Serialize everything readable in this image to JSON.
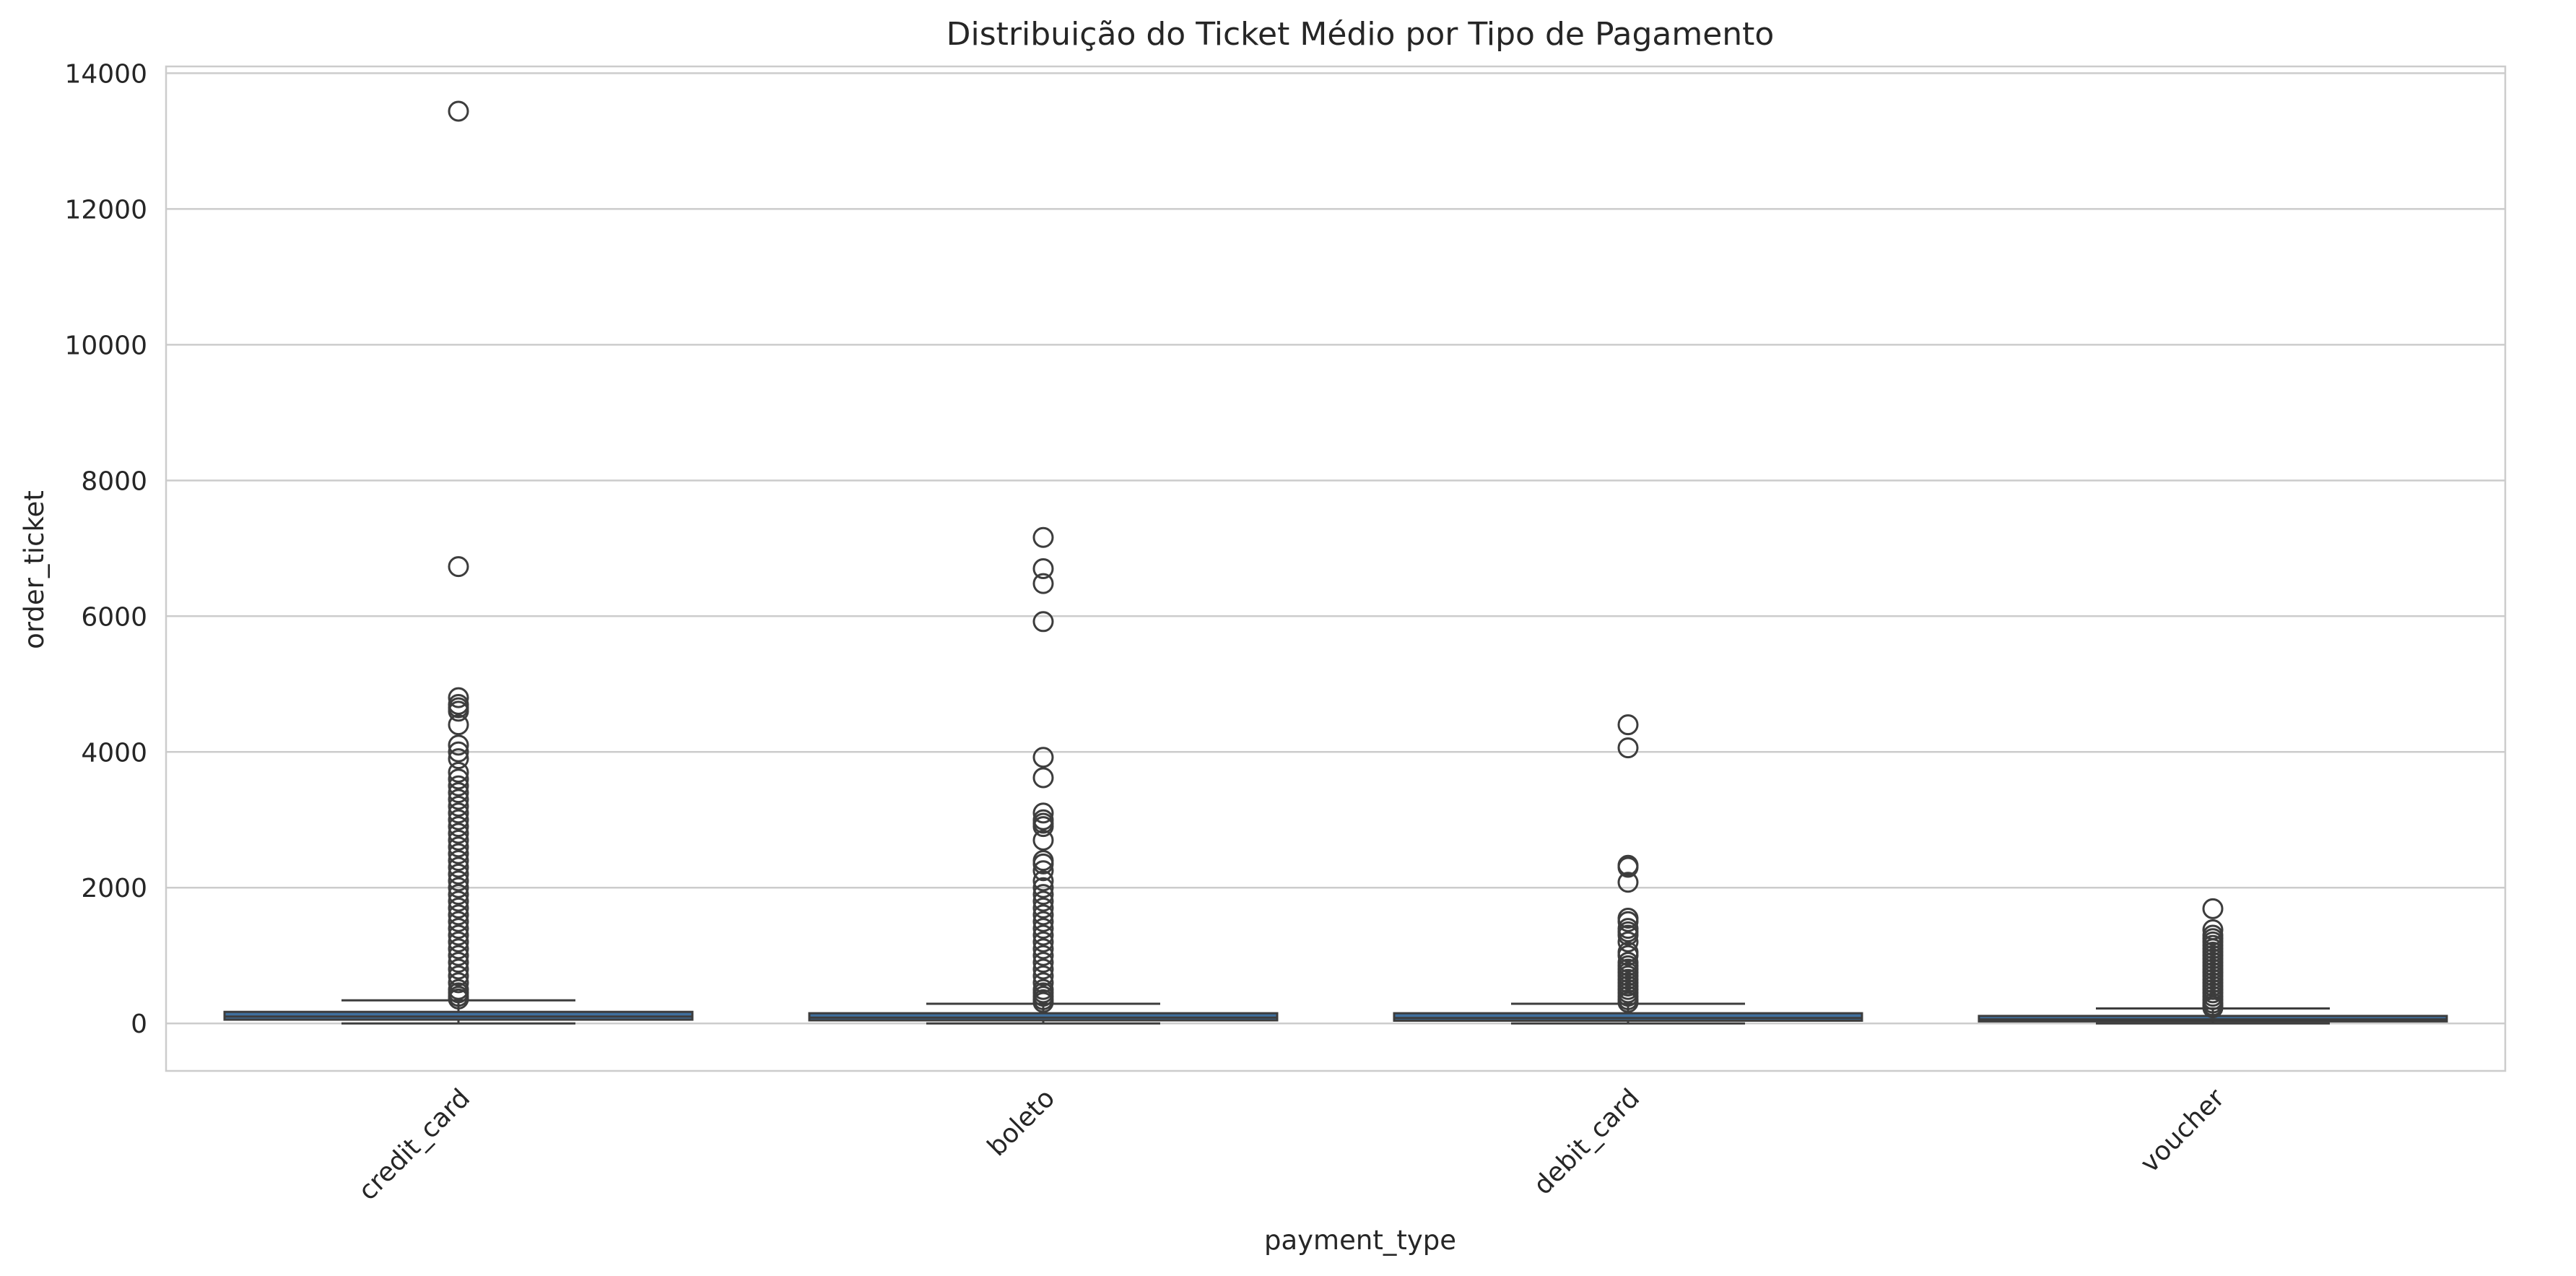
{
  "chart_data": {
    "type": "box",
    "title": "Distribuição do Ticket Médio por Tipo de Pagamento",
    "xlabel": "payment_type",
    "ylabel": "order_ticket",
    "ylim": [
      -700,
      14100
    ],
    "yticks": [
      0,
      2000,
      4000,
      6000,
      8000,
      10000,
      12000,
      14000
    ],
    "categories": [
      "credit_card",
      "boleto",
      "debit_card",
      "voucher"
    ],
    "grid": "y",
    "box_color": "#3f6f9e",
    "boxes": [
      {
        "category": "credit_card",
        "whisker_low": 0,
        "q1": 55,
        "median": 100,
        "q3": 170,
        "whisker_high": 340,
        "outliers": [
          13440,
          6730,
          4800,
          4700,
          4650,
          4600,
          4400,
          4100,
          4000,
          3900,
          3700,
          3600,
          3500,
          3400,
          3300,
          3200,
          3100,
          3000,
          2900,
          2800,
          2700,
          2600,
          2500,
          2400,
          2300,
          2200,
          2100,
          2000,
          1900,
          1800,
          1700,
          1600,
          1500,
          1400,
          1300,
          1200,
          1100,
          1000,
          900,
          800,
          700,
          600,
          500,
          450,
          400,
          360
        ]
      },
      {
        "category": "boleto",
        "whisker_low": 0,
        "q1": 45,
        "median": 85,
        "q3": 150,
        "whisker_high": 290,
        "outliers": [
          7160,
          6700,
          6480,
          5920,
          3920,
          3620,
          3100,
          3000,
          2950,
          2900,
          2700,
          2400,
          2350,
          2250,
          2100,
          2000,
          1900,
          1800,
          1700,
          1600,
          1500,
          1400,
          1300,
          1200,
          1100,
          1000,
          900,
          800,
          700,
          600,
          500,
          450,
          400,
          350,
          310
        ]
      },
      {
        "category": "debit_card",
        "whisker_low": 0,
        "q1": 40,
        "median": 80,
        "q3": 150,
        "whisker_high": 290,
        "outliers": [
          4400,
          4060,
          2330,
          2300,
          2080,
          1550,
          1500,
          1400,
          1350,
          1300,
          1200,
          1050,
          1000,
          900,
          850,
          800,
          750,
          700,
          650,
          600,
          550,
          500,
          450,
          400,
          350,
          310
        ]
      },
      {
        "category": "voucher",
        "whisker_low": 0,
        "q1": 30,
        "median": 60,
        "q3": 110,
        "whisker_high": 220,
        "outliers": [
          1690,
          1380,
          1300,
          1250,
          1200,
          1150,
          1100,
          1050,
          1000,
          950,
          900,
          850,
          800,
          750,
          700,
          650,
          600,
          550,
          500,
          450,
          400,
          350,
          300,
          260,
          230
        ]
      }
    ]
  }
}
